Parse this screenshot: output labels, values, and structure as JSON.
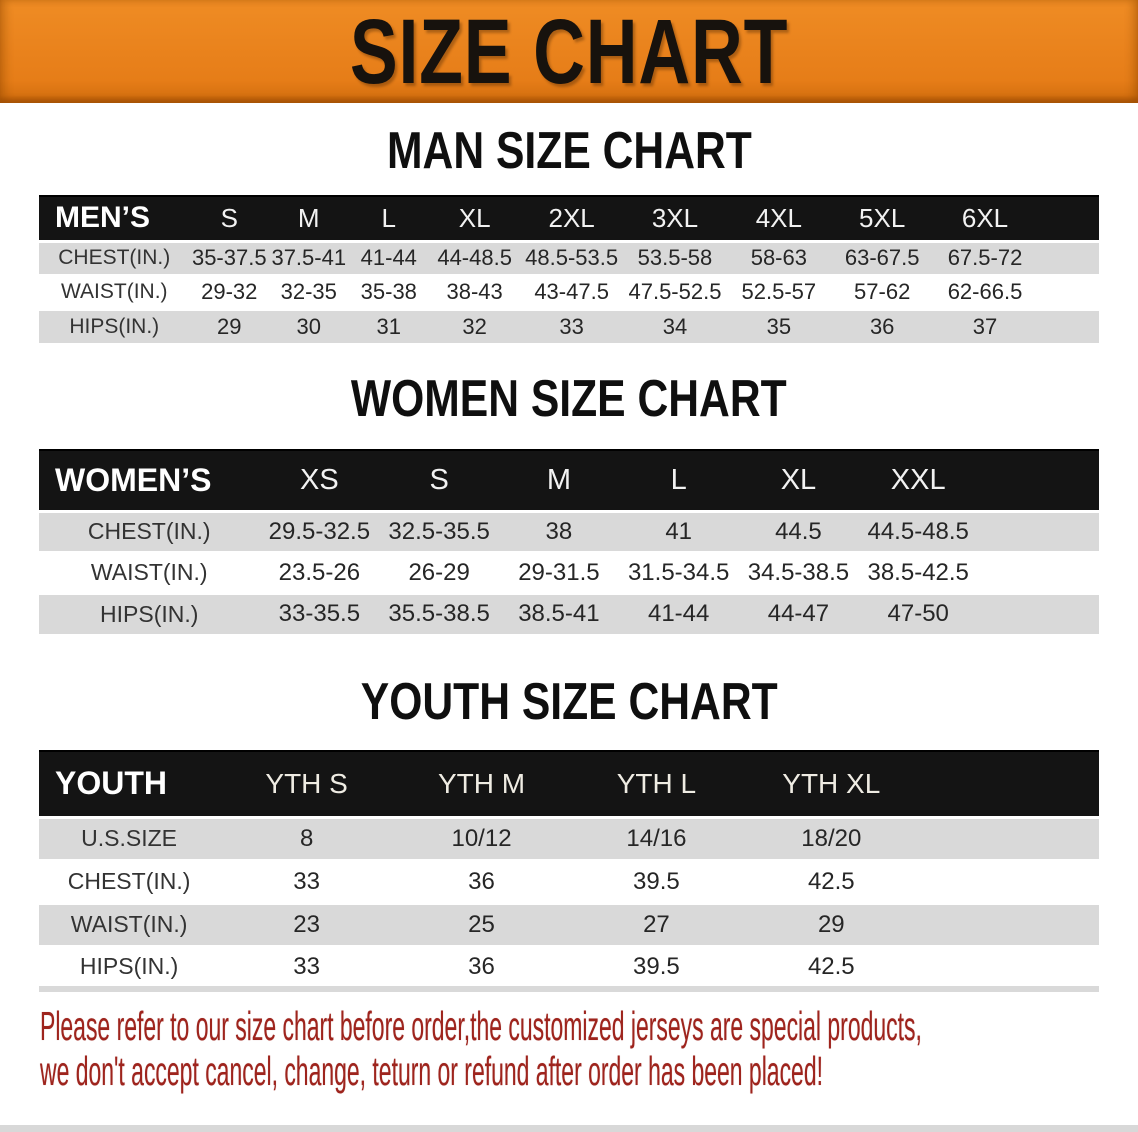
{
  "banner": {
    "title": "SIZE CHART"
  },
  "colors": {
    "banner_orange": "#E6801F",
    "header_bar_black": "#141414",
    "row_stripe_gray": "#D9D9D9",
    "note_red": "#9E241D"
  },
  "sections": {
    "men": {
      "heading": "MAN SIZE CHART",
      "table": {
        "group_label": "MEN’S",
        "columns": [
          "S",
          "M",
          "L",
          "XL",
          "2XL",
          "3XL",
          "4XL",
          "5XL",
          "6XL"
        ],
        "rows": [
          {
            "label": "CHEST(IN.)",
            "values": [
              "35-37.5",
              "37.5-41",
              "41-44",
              "44-48.5",
              "48.5-53.5",
              "53.5-58",
              "58-63",
              "63-67.5",
              "67.5-72"
            ]
          },
          {
            "label": "WAIST(IN.)",
            "values": [
              "29-32",
              "32-35",
              "35-38",
              "38-43",
              "43-47.5",
              "47.5-52.5",
              "52.5-57",
              "57-62",
              "62-66.5"
            ]
          },
          {
            "label": "HIPS(IN.)",
            "values": [
              "29",
              "30",
              "31",
              "32",
              "33",
              "34",
              "35",
              "36",
              "37"
            ]
          }
        ]
      }
    },
    "women": {
      "heading": "WOMEN SIZE CHART",
      "table": {
        "group_label": "WOMEN’S",
        "columns": [
          "XS",
          "S",
          "M",
          "L",
          "XL",
          "XXL"
        ],
        "rows": [
          {
            "label": "CHEST(IN.)",
            "values": [
              "29.5-32.5",
              "32.5-35.5",
              "38",
              "41",
              "44.5",
              "44.5-48.5"
            ]
          },
          {
            "label": "WAIST(IN.)",
            "values": [
              "23.5-26",
              "26-29",
              "29-31.5",
              "31.5-34.5",
              "34.5-38.5",
              "38.5-42.5"
            ]
          },
          {
            "label": "HIPS(IN.)",
            "values": [
              "33-35.5",
              "35.5-38.5",
              "38.5-41",
              "41-44",
              "44-47",
              "47-50"
            ]
          }
        ]
      }
    },
    "youth": {
      "heading": "YOUTH SIZE CHART",
      "table": {
        "group_label": "YOUTH",
        "columns": [
          "YTH S",
          "YTH M",
          "YTH L",
          "YTH XL"
        ],
        "rows": [
          {
            "label": "U.S.SIZE",
            "values": [
              "8",
              "10/12",
              "14/16",
              "18/20"
            ]
          },
          {
            "label": "CHEST(IN.)",
            "values": [
              "33",
              "36",
              "39.5",
              "42.5"
            ]
          },
          {
            "label": "WAIST(IN.)",
            "values": [
              "23",
              "25",
              "27",
              "29"
            ]
          },
          {
            "label": "HIPS(IN.)",
            "values": [
              "33",
              "36",
              "39.5",
              "42.5"
            ]
          }
        ]
      }
    }
  },
  "footer_note": {
    "line1": "Please refer to our size chart before order,the customized jerseys are special products,",
    "line2": "we don't accept cancel, change, teturn or refund after order has been placed!"
  }
}
